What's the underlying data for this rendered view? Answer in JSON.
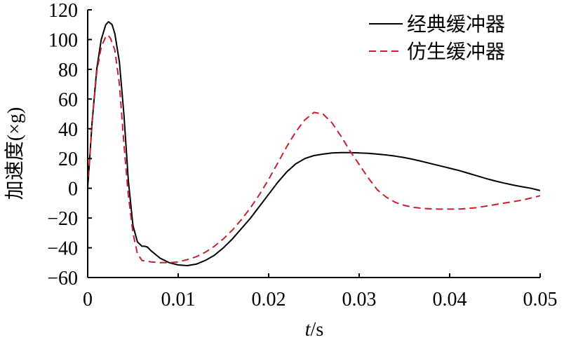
{
  "chart_data": {
    "type": "line",
    "title": "",
    "xlabel_var": "t",
    "xlabel_unit": "/s",
    "ylabel": "加速度(×g)",
    "xlim": [
      0,
      0.05
    ],
    "ylim": [
      -60,
      120
    ],
    "xticks": [
      0,
      0.01,
      0.02,
      0.03,
      0.04,
      0.05
    ],
    "xtick_labels": [
      "0",
      "0.01",
      "0.02",
      "0.03",
      "0.04",
      "0.05"
    ],
    "yticks": [
      -60,
      -40,
      -20,
      0,
      20,
      40,
      60,
      80,
      100,
      120
    ],
    "ytick_labels": [
      "−60",
      "−40",
      "−20",
      "0",
      "20",
      "40",
      "60",
      "80",
      "100",
      "120"
    ],
    "grid": false,
    "legend_position": "top-right",
    "series": [
      {
        "name": "经典缓冲器",
        "color": "#000000",
        "dash": "solid",
        "points": [
          [
            0,
            0
          ],
          [
            0.0005,
            45
          ],
          [
            0.001,
            80
          ],
          [
            0.0015,
            100
          ],
          [
            0.002,
            110
          ],
          [
            0.0023,
            112
          ],
          [
            0.0027,
            110
          ],
          [
            0.003,
            104
          ],
          [
            0.0035,
            85
          ],
          [
            0.004,
            50
          ],
          [
            0.0045,
            5
          ],
          [
            0.005,
            -25
          ],
          [
            0.0055,
            -36
          ],
          [
            0.006,
            -39
          ],
          [
            0.0063,
            -39
          ],
          [
            0.0066,
            -39.5
          ],
          [
            0.007,
            -42
          ],
          [
            0.008,
            -47
          ],
          [
            0.009,
            -50
          ],
          [
            0.01,
            -51.5
          ],
          [
            0.011,
            -52
          ],
          [
            0.012,
            -51
          ],
          [
            0.013,
            -48.5
          ],
          [
            0.014,
            -45
          ],
          [
            0.015,
            -40
          ],
          [
            0.016,
            -34
          ],
          [
            0.017,
            -27
          ],
          [
            0.018,
            -20
          ],
          [
            0.019,
            -12
          ],
          [
            0.02,
            -4
          ],
          [
            0.021,
            4
          ],
          [
            0.022,
            11
          ],
          [
            0.023,
            16.5
          ],
          [
            0.024,
            20
          ],
          [
            0.025,
            22
          ],
          [
            0.026,
            23
          ],
          [
            0.027,
            23.8
          ],
          [
            0.028,
            24
          ],
          [
            0.029,
            24
          ],
          [
            0.03,
            23.8
          ],
          [
            0.031,
            23.5
          ],
          [
            0.032,
            23
          ],
          [
            0.033,
            22.4
          ],
          [
            0.034,
            21.6
          ],
          [
            0.035,
            20.6
          ],
          [
            0.036,
            19.4
          ],
          [
            0.037,
            18
          ],
          [
            0.038,
            16.5
          ],
          [
            0.039,
            15
          ],
          [
            0.04,
            13.5
          ],
          [
            0.041,
            12
          ],
          [
            0.042,
            10.2
          ],
          [
            0.043,
            8.4
          ],
          [
            0.044,
            6.6
          ],
          [
            0.045,
            5
          ],
          [
            0.046,
            3.5
          ],
          [
            0.047,
            2.2
          ],
          [
            0.048,
            1
          ],
          [
            0.049,
            0
          ],
          [
            0.05,
            -1.5
          ]
        ]
      },
      {
        "name": "仿生缓冲器",
        "color": "#c8202f",
        "dash": "dashed",
        "points": [
          [
            0,
            0
          ],
          [
            0.0005,
            45
          ],
          [
            0.001,
            78
          ],
          [
            0.0015,
            95
          ],
          [
            0.002,
            102
          ],
          [
            0.0022,
            103
          ],
          [
            0.0025,
            101
          ],
          [
            0.003,
            93
          ],
          [
            0.0035,
            70
          ],
          [
            0.004,
            30
          ],
          [
            0.0045,
            -5
          ],
          [
            0.005,
            -30
          ],
          [
            0.0055,
            -44
          ],
          [
            0.006,
            -48.5
          ],
          [
            0.007,
            -49.5
          ],
          [
            0.008,
            -50
          ],
          [
            0.009,
            -50
          ],
          [
            0.01,
            -49.5
          ],
          [
            0.011,
            -48
          ],
          [
            0.012,
            -46
          ],
          [
            0.013,
            -43
          ],
          [
            0.014,
            -39
          ],
          [
            0.015,
            -34
          ],
          [
            0.016,
            -28
          ],
          [
            0.017,
            -21
          ],
          [
            0.018,
            -13
          ],
          [
            0.019,
            -4
          ],
          [
            0.02,
            6
          ],
          [
            0.021,
            17
          ],
          [
            0.022,
            28
          ],
          [
            0.023,
            38
          ],
          [
            0.024,
            46
          ],
          [
            0.025,
            51
          ],
          [
            0.026,
            50
          ],
          [
            0.027,
            44
          ],
          [
            0.028,
            35
          ],
          [
            0.029,
            25
          ],
          [
            0.03,
            16
          ],
          [
            0.031,
            7
          ],
          [
            0.032,
            -1
          ],
          [
            0.033,
            -6
          ],
          [
            0.034,
            -9.5
          ],
          [
            0.035,
            -11.5
          ],
          [
            0.036,
            -12.8
          ],
          [
            0.037,
            -13.5
          ],
          [
            0.038,
            -13.8
          ],
          [
            0.039,
            -14
          ],
          [
            0.04,
            -14
          ],
          [
            0.041,
            -14
          ],
          [
            0.042,
            -13.5
          ],
          [
            0.043,
            -13
          ],
          [
            0.044,
            -12
          ],
          [
            0.045,
            -11
          ],
          [
            0.046,
            -10
          ],
          [
            0.047,
            -9
          ],
          [
            0.048,
            -8
          ],
          [
            0.049,
            -6.5
          ],
          [
            0.05,
            -5
          ]
        ]
      }
    ]
  }
}
